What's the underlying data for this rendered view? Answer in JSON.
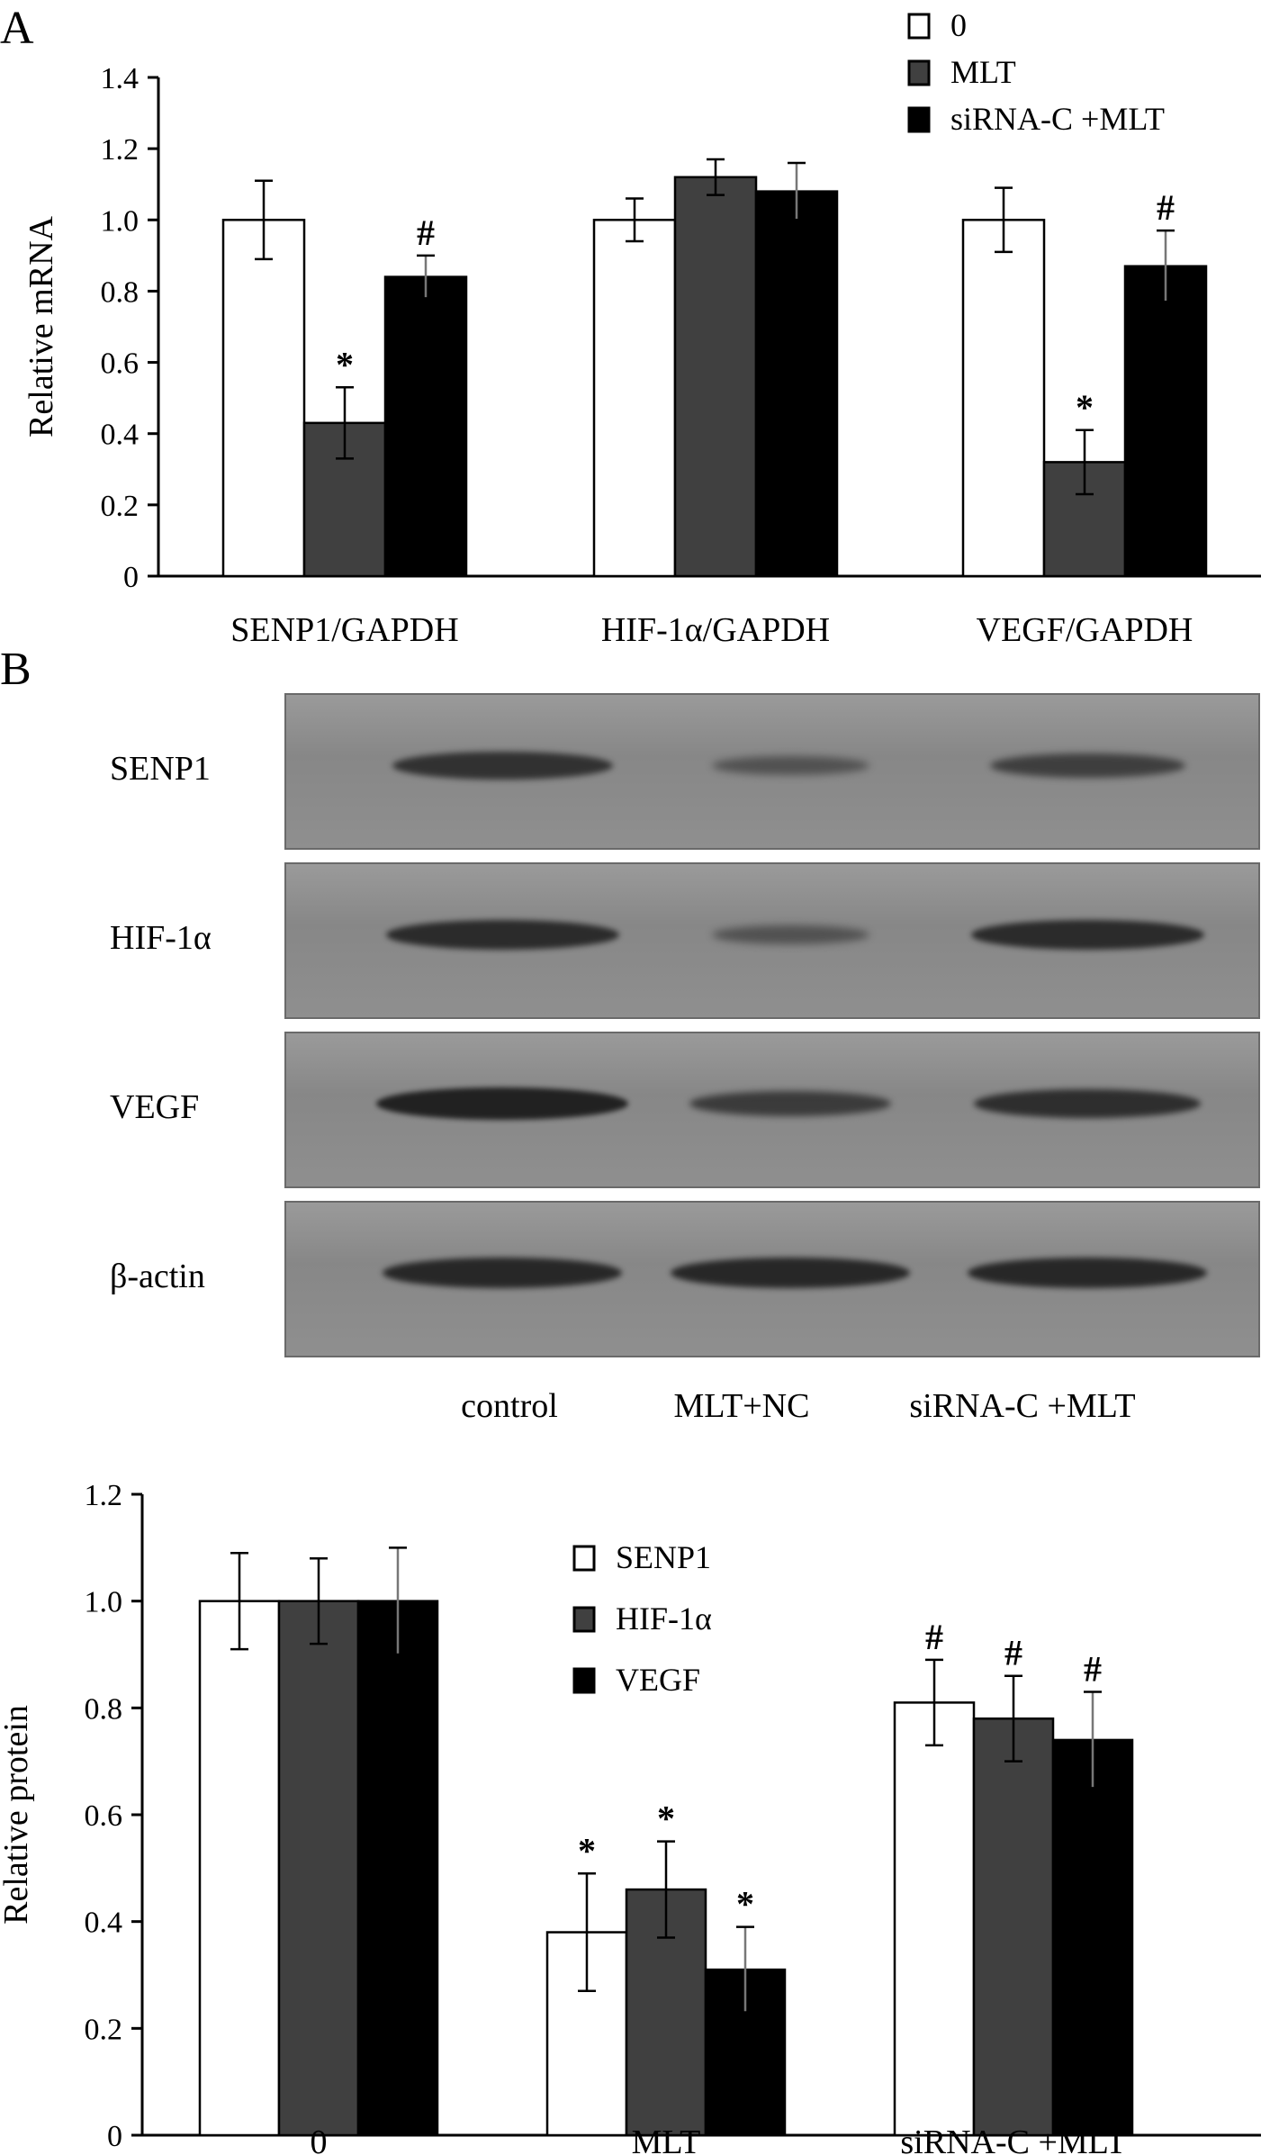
{
  "panel_a_letter": "A",
  "panel_b_letter": "B",
  "blot": {
    "rows": [
      {
        "label": "SENP1",
        "intensity": [
          0.75,
          0.25,
          0.55
        ]
      },
      {
        "label": "HIF-1α",
        "intensity": [
          0.85,
          0.25,
          0.85
        ]
      },
      {
        "label": "VEGF",
        "intensity": [
          1.0,
          0.6,
          0.8
        ]
      },
      {
        "label": "β-actin",
        "intensity": [
          0.9,
          0.9,
          0.9
        ]
      }
    ],
    "lanes": [
      "control",
      "MLT+NC",
      "siRNA-C +MLT"
    ]
  },
  "chart_data": [
    {
      "type": "bar",
      "ylabel": "Relative mRNA",
      "ylim": [
        0,
        1.4
      ],
      "yticks": [
        "0",
        "0.2",
        "0.4",
        "0.6",
        "0.8",
        "1.0",
        "1.2",
        "1.4"
      ],
      "categories": [
        "SENP1/GAPDH",
        "HIF-1α/GAPDH",
        "VEGF/GAPDH"
      ],
      "legend_position": "top-right",
      "series": [
        {
          "name": "0",
          "color": "#ffffff",
          "values": [
            1.0,
            1.0,
            1.0
          ],
          "errors": [
            0.11,
            0.06,
            0.09
          ],
          "marks": [
            "",
            "",
            ""
          ]
        },
        {
          "name": "MLT",
          "color": "#404040",
          "values": [
            0.43,
            1.12,
            0.32
          ],
          "errors": [
            0.1,
            0.05,
            0.09
          ],
          "marks": [
            "*",
            "",
            "*"
          ]
        },
        {
          "name": "siRNA-C +MLT",
          "color": "#000000",
          "values": [
            0.84,
            1.08,
            0.87
          ],
          "errors": [
            0.06,
            0.08,
            0.1
          ],
          "marks": [
            "#",
            "",
            "#"
          ]
        }
      ]
    },
    {
      "type": "bar",
      "ylabel": "Relative protein",
      "ylim": [
        0,
        1.2
      ],
      "yticks": [
        "0",
        "0.2",
        "0.4",
        "0.6",
        "0.8",
        "1.0",
        "1.2"
      ],
      "categories": [
        "0",
        "MLT",
        "siRNA-C +MLT"
      ],
      "legend_position": "top-center",
      "series": [
        {
          "name": "SENP1",
          "color": "#ffffff",
          "values": [
            1.0,
            0.38,
            0.81
          ],
          "errors": [
            0.09,
            0.11,
            0.08
          ],
          "marks": [
            "",
            "*",
            "#"
          ]
        },
        {
          "name": "HIF-1α",
          "color": "#404040",
          "values": [
            1.0,
            0.46,
            0.78
          ],
          "errors": [
            0.08,
            0.09,
            0.08
          ],
          "marks": [
            "",
            "*",
            "#"
          ]
        },
        {
          "name": "VEGF",
          "color": "#000000",
          "values": [
            1.0,
            0.31,
            0.74
          ],
          "errors": [
            0.1,
            0.08,
            0.09
          ],
          "marks": [
            "",
            "*",
            "#"
          ]
        }
      ]
    }
  ]
}
